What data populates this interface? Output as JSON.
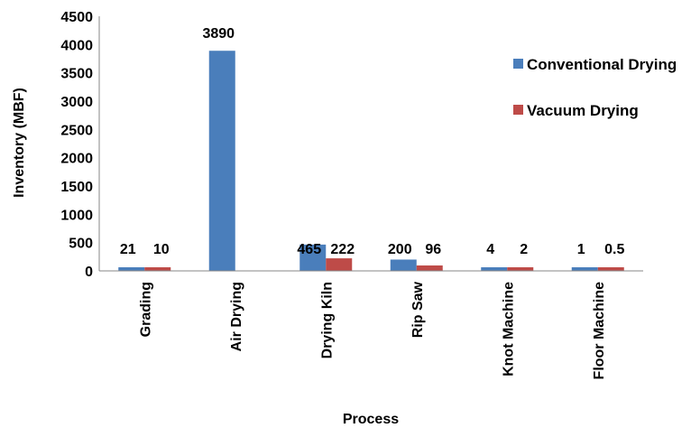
{
  "chart_data": {
    "type": "bar",
    "title": "",
    "xlabel": "Process",
    "ylabel": "Inventory (MBF)",
    "ylim": [
      0,
      4500
    ],
    "yticks": [
      0,
      500,
      1000,
      1500,
      2000,
      2500,
      3000,
      3500,
      4000,
      4500
    ],
    "grid": false,
    "legend_position": "right",
    "categories": [
      "Grading",
      "Air Drying",
      "Drying Kiln",
      "Rip Saw",
      "Knot Machine",
      "Floor Machine"
    ],
    "series": [
      {
        "name": "Conventional Drying",
        "color": "#4a7ebb",
        "values": [
          21,
          3890,
          465,
          200,
          4,
          1
        ],
        "labels": [
          "21",
          "3890",
          "465",
          "200",
          "4",
          "1"
        ]
      },
      {
        "name": "Vacuum Drying",
        "color": "#be4b48",
        "values": [
          10,
          null,
          222,
          96,
          2,
          0.5
        ],
        "labels": [
          "10",
          "",
          "222",
          "96",
          "2",
          "0.5"
        ]
      }
    ]
  }
}
